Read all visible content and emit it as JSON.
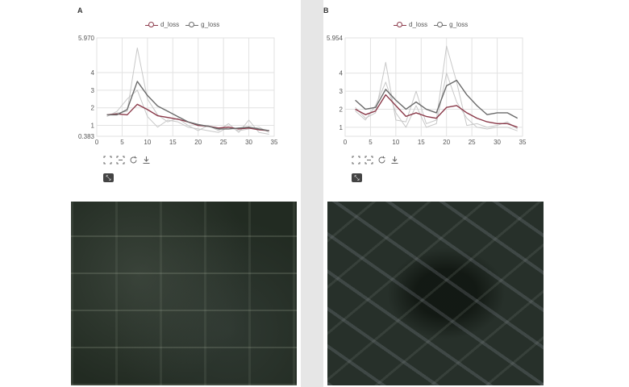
{
  "panels": [
    {
      "letter": "A",
      "legend": [
        "d_loss",
        "g_loss"
      ],
      "tools": [
        "zoom-icon",
        "zoom-reset-icon",
        "restore-icon",
        "download-icon"
      ],
      "fullscreen_icon": "fullscreen-icon"
    },
    {
      "letter": "B",
      "legend": [
        "d_loss",
        "g_loss"
      ],
      "tools": [
        "zoom-icon",
        "zoom-reset-icon",
        "restore-icon",
        "download-icon"
      ],
      "fullscreen_icon": "fullscreen-icon"
    }
  ],
  "colors": {
    "d_loss": "#8b3a4a",
    "g_loss": "#6b6b6b",
    "faint": "#c8c8c8",
    "grid": "#e2e2e2"
  },
  "chart_data": [
    {
      "type": "line",
      "title": "",
      "xlabel": "",
      "ylabel": "",
      "xlim": [
        0,
        35
      ],
      "ylim": [
        0.383,
        5.97
      ],
      "xticks": [
        0,
        5,
        10,
        15,
        20,
        25,
        30,
        35
      ],
      "yticks": [
        0.383,
        1,
        2,
        3,
        4,
        5.97
      ],
      "ytick_labels": [
        "0.383",
        "1",
        "2",
        "3",
        "4",
        "5.970"
      ],
      "legend_position": "top-center",
      "series": [
        {
          "name": "d_loss",
          "x": [
            2,
            4,
            6,
            8,
            10,
            12,
            14,
            16,
            18,
            20,
            22,
            24,
            26,
            28,
            30,
            32,
            34
          ],
          "y": [
            1.6,
            1.65,
            1.6,
            2.2,
            1.9,
            1.55,
            1.45,
            1.35,
            1.2,
            1.0,
            0.95,
            0.85,
            0.9,
            0.8,
            0.85,
            0.75,
            0.7
          ]
        },
        {
          "name": "g_loss",
          "x": [
            2,
            4,
            6,
            8,
            10,
            12,
            14,
            16,
            18,
            20,
            22,
            24,
            26,
            28,
            30,
            32,
            34
          ],
          "y": [
            1.6,
            1.6,
            1.9,
            3.5,
            2.7,
            2.1,
            1.8,
            1.5,
            1.2,
            1.05,
            0.95,
            0.8,
            0.8,
            0.85,
            0.9,
            0.8,
            0.7
          ]
        },
        {
          "name": "",
          "faint": true,
          "x": [
            2,
            4,
            6,
            8,
            10,
            12,
            14,
            16,
            18,
            20,
            22,
            24,
            26,
            28,
            30,
            32,
            34
          ],
          "y": [
            1.6,
            1.7,
            1.8,
            5.4,
            2.5,
            1.6,
            1.2,
            1.4,
            1.0,
            0.7,
            1.0,
            0.7,
            1.1,
            0.6,
            1.3,
            0.6,
            0.5
          ]
        },
        {
          "name": "",
          "faint": true,
          "x": [
            2,
            4,
            6,
            8,
            10,
            12,
            14,
            16,
            18,
            20,
            22,
            24,
            26,
            28,
            30,
            32,
            34
          ],
          "y": [
            1.5,
            1.8,
            2.5,
            3.0,
            1.5,
            0.9,
            1.3,
            1.2,
            0.9,
            0.8,
            0.7,
            0.6,
            0.9,
            0.7,
            0.8,
            0.9,
            0.6
          ]
        }
      ]
    },
    {
      "type": "line",
      "title": "",
      "xlabel": "",
      "ylabel": "",
      "xlim": [
        0,
        35
      ],
      "ylim": [
        0.5,
        5.954
      ],
      "xticks": [
        0,
        5,
        10,
        15,
        20,
        25,
        30,
        35
      ],
      "yticks": [
        1,
        2,
        3,
        4,
        5.954
      ],
      "ytick_labels": [
        "1",
        "2",
        "3",
        "4",
        "5.954"
      ],
      "legend_position": "top-center",
      "series": [
        {
          "name": "d_loss",
          "x": [
            2,
            4,
            6,
            8,
            10,
            12,
            14,
            16,
            18,
            20,
            22,
            24,
            26,
            28,
            30,
            32,
            34
          ],
          "y": [
            2.0,
            1.7,
            1.9,
            2.8,
            2.2,
            1.6,
            1.8,
            1.6,
            1.5,
            2.1,
            2.2,
            1.8,
            1.5,
            1.3,
            1.2,
            1.2,
            1.0
          ]
        },
        {
          "name": "g_loss",
          "x": [
            2,
            4,
            6,
            8,
            10,
            12,
            14,
            16,
            18,
            20,
            22,
            24,
            26,
            28,
            30,
            32,
            34
          ],
          "y": [
            2.5,
            2.0,
            2.1,
            3.1,
            2.5,
            2.0,
            2.4,
            2.0,
            1.8,
            3.3,
            3.6,
            2.8,
            2.2,
            1.7,
            1.8,
            1.8,
            1.5
          ]
        },
        {
          "name": "",
          "faint": true,
          "x": [
            2,
            4,
            6,
            8,
            10,
            12,
            14,
            16,
            18,
            20,
            22,
            24,
            26,
            28,
            30,
            32,
            34
          ],
          "y": [
            2.1,
            1.5,
            1.8,
            4.6,
            1.4,
            1.3,
            3.0,
            1.2,
            1.4,
            5.5,
            3.5,
            1.1,
            1.2,
            1.0,
            1.1,
            1.3,
            0.9
          ]
        },
        {
          "name": "",
          "faint": true,
          "x": [
            2,
            4,
            6,
            8,
            10,
            12,
            14,
            16,
            18,
            20,
            22,
            24,
            26,
            28,
            30,
            32,
            34
          ],
          "y": [
            1.9,
            1.4,
            2.2,
            3.5,
            1.8,
            1.0,
            2.2,
            1.0,
            1.2,
            4.0,
            2.4,
            1.5,
            1.0,
            0.9,
            1.0,
            1.0,
            0.8
          ]
        }
      ]
    }
  ]
}
